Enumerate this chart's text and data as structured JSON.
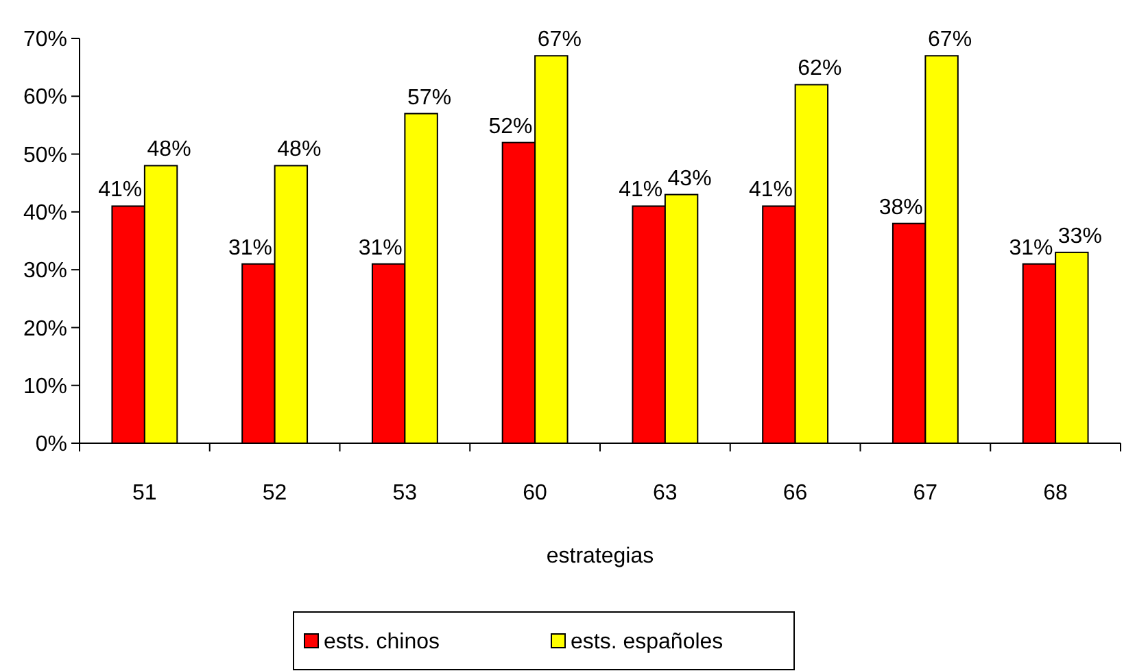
{
  "chart_data": {
    "type": "bar",
    "xlabel": "estrategias",
    "categories": [
      "51",
      "52",
      "53",
      "60",
      "63",
      "66",
      "67",
      "68"
    ],
    "series": [
      {
        "name": "ests. chinos",
        "color": "#ff0000",
        "values": [
          41,
          31,
          31,
          52,
          41,
          41,
          38,
          31
        ],
        "value_labels": [
          "41%",
          "31%",
          "31%",
          "52%",
          "41%",
          "41%",
          "38%",
          "31%"
        ]
      },
      {
        "name": "ests. españoles",
        "color": "#ffff00",
        "values": [
          48,
          48,
          57,
          67,
          43,
          62,
          67,
          33
        ],
        "value_labels": [
          "48%",
          "48%",
          "57%",
          "67%",
          "43%",
          "62%",
          "67%",
          "33%"
        ]
      }
    ],
    "ylim": [
      0,
      70
    ],
    "yticks": [
      {
        "value": 0,
        "label": "0%"
      },
      {
        "value": 10,
        "label": "10%"
      },
      {
        "value": 20,
        "label": "20%"
      },
      {
        "value": 30,
        "label": "30%"
      },
      {
        "value": 40,
        "label": "40%"
      },
      {
        "value": 50,
        "label": "50%"
      },
      {
        "value": 60,
        "label": "60%"
      },
      {
        "value": 70,
        "label": "70%"
      }
    ],
    "grid": false,
    "legend": "bottom"
  }
}
